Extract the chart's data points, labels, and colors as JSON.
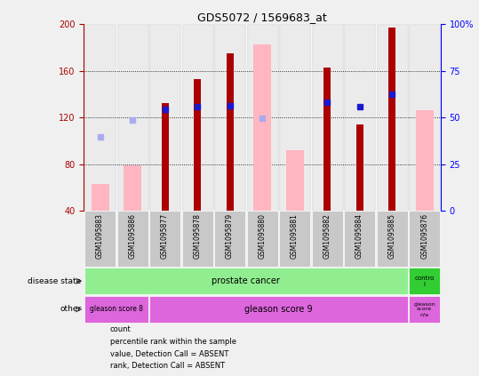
{
  "title": "GDS5072 / 1569683_at",
  "samples": [
    "GSM1095883",
    "GSM1095886",
    "GSM1095877",
    "GSM1095878",
    "GSM1095879",
    "GSM1095880",
    "GSM1095881",
    "GSM1095882",
    "GSM1095884",
    "GSM1095885",
    "GSM1095876"
  ],
  "red_bars": [
    null,
    null,
    132,
    153,
    175,
    null,
    null,
    163,
    114,
    197,
    null
  ],
  "pink_bars": [
    63,
    79,
    null,
    null,
    null,
    183,
    92,
    null,
    null,
    null,
    126
  ],
  "blue_squares": [
    null,
    null,
    127,
    129,
    130,
    null,
    null,
    133,
    129,
    140,
    null
  ],
  "light_blue_squares": [
    103,
    118,
    null,
    null,
    null,
    119,
    null,
    null,
    null,
    null,
    null
  ],
  "ylim_left": [
    40,
    200
  ],
  "ylim_right": [
    0,
    100
  ],
  "yticks_left": [
    40,
    80,
    120,
    160,
    200
  ],
  "yticks_right": [
    0,
    25,
    50,
    75,
    100
  ],
  "ytick_labels_right": [
    "0",
    "25",
    "50",
    "75",
    "100%"
  ],
  "red_color": "#aa0000",
  "pink_color": "#ffb6c1",
  "blue_color": "#1a1acd",
  "light_blue_color": "#aaaaee",
  "green_light": "#90ee90",
  "green_dark": "#32cd32",
  "purple": "#dd66dd",
  "gray_col": "#c8c8c8"
}
